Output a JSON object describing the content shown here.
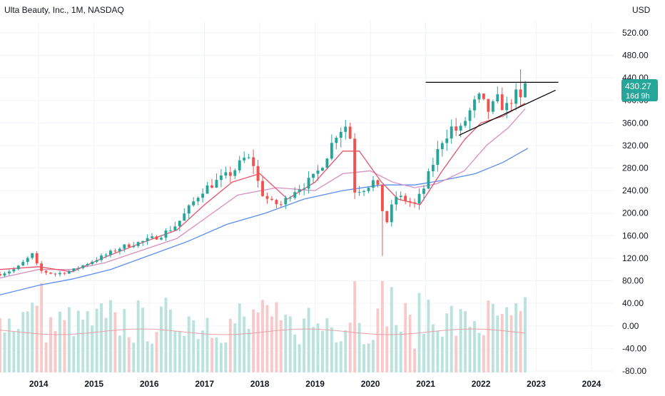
{
  "header": {
    "title": "Ulta Beauty, Inc., 1M, NASDAQ",
    "currency": "USD"
  },
  "price_badge": {
    "price": "430.27",
    "countdown": "16d 9h"
  },
  "colors": {
    "up": "#26a69a",
    "down": "#ef5350",
    "vol_up": "#b9e3dc",
    "vol_down": "#f8c9c8",
    "ma_fast": "#e8536a",
    "ma_mid": "#d88fc0",
    "ma_slow": "#5b8def",
    "grid": "#f0f3fa",
    "trendline": "#000000"
  },
  "chart_data": {
    "type": "candlestick",
    "title": "Ulta Beauty, Inc., 1M, NASDAQ",
    "y_axis": {
      "ticks": [
        "520.00",
        "480.00",
        "440.00",
        "400.00",
        "360.00",
        "320.00",
        "280.00",
        "240.00",
        "200.00",
        "160.00",
        "120.00",
        "80.00",
        "40.00",
        "0.00",
        "-40.00",
        "-80.00"
      ],
      "ylim": [
        -80,
        540
      ]
    },
    "x_axis": {
      "ticks": [
        "2014",
        "2015",
        "2016",
        "2017",
        "2018",
        "2019",
        "2020",
        "2021",
        "2022",
        "2023",
        "2024"
      ],
      "xlim": [
        2013.3,
        2024.4
      ]
    },
    "last_price": 430.27,
    "resistance_level": 432,
    "support_line": {
      "from": [
        "2021-08",
        338
      ],
      "to": [
        "2023-05",
        418
      ]
    },
    "anchors": [
      [
        2013.3,
        92
      ],
      [
        2013.6,
        102
      ],
      [
        2013.9,
        128
      ],
      [
        2014.0,
        98
      ],
      [
        2014.3,
        92
      ],
      [
        2014.6,
        98
      ],
      [
        2014.9,
        112
      ],
      [
        2015.2,
        125
      ],
      [
        2015.5,
        140
      ],
      [
        2015.9,
        150
      ],
      [
        2016.2,
        160
      ],
      [
        2016.5,
        180
      ],
      [
        2016.8,
        220
      ],
      [
        2016.95,
        240
      ],
      [
        2017.2,
        255
      ],
      [
        2017.5,
        272
      ],
      [
        2017.75,
        300
      ],
      [
        2017.9,
        285
      ],
      [
        2018.0,
        240
      ],
      [
        2018.2,
        218
      ],
      [
        2018.4,
        215
      ],
      [
        2018.6,
        240
      ],
      [
        2018.8,
        250
      ],
      [
        2019.0,
        265
      ],
      [
        2019.2,
        300
      ],
      [
        2019.4,
        345
      ],
      [
        2019.55,
        355
      ],
      [
        2019.65,
        330
      ],
      [
        2019.7,
        240
      ],
      [
        2019.9,
        245
      ],
      [
        2020.1,
        260
      ],
      [
        2020.2,
        210
      ],
      [
        2020.3,
        185
      ],
      [
        2020.45,
        230
      ],
      [
        2020.6,
        225
      ],
      [
        2020.8,
        215
      ],
      [
        2020.95,
        240
      ],
      [
        2021.1,
        280
      ],
      [
        2021.3,
        330
      ],
      [
        2021.5,
        355
      ],
      [
        2021.6,
        340
      ],
      [
        2021.75,
        372
      ],
      [
        2021.95,
        405
      ],
      [
        2022.15,
        380
      ],
      [
        2022.3,
        400
      ],
      [
        2022.45,
        385
      ],
      [
        2022.6,
        412
      ],
      [
        2022.75,
        395
      ],
      [
        2022.85,
        430
      ]
    ],
    "ma_fast_pts": [
      [
        2013.3,
        100
      ],
      [
        2014.0,
        105
      ],
      [
        2014.6,
        96
      ],
      [
        2015.2,
        122
      ],
      [
        2015.8,
        145
      ],
      [
        2016.5,
        170
      ],
      [
        2017.0,
        215
      ],
      [
        2017.5,
        255
      ],
      [
        2018.0,
        270
      ],
      [
        2018.5,
        225
      ],
      [
        2019.0,
        255
      ],
      [
        2019.5,
        310
      ],
      [
        2019.8,
        310
      ],
      [
        2020.2,
        255
      ],
      [
        2020.5,
        225
      ],
      [
        2020.9,
        215
      ],
      [
        2021.3,
        275
      ],
      [
        2021.7,
        330
      ],
      [
        2022.0,
        360
      ],
      [
        2022.4,
        372
      ],
      [
        2022.8,
        395
      ]
    ],
    "ma_mid_pts": [
      [
        2013.3,
        85
      ],
      [
        2014.0,
        100
      ],
      [
        2014.6,
        100
      ],
      [
        2015.2,
        112
      ],
      [
        2015.8,
        132
      ],
      [
        2016.5,
        155
      ],
      [
        2017.0,
        190
      ],
      [
        2017.6,
        232
      ],
      [
        2018.3,
        245
      ],
      [
        2019.0,
        240
      ],
      [
        2019.5,
        270
      ],
      [
        2020.0,
        275
      ],
      [
        2020.4,
        255
      ],
      [
        2020.8,
        245
      ],
      [
        2021.2,
        252
      ],
      [
        2021.7,
        275
      ],
      [
        2022.1,
        320
      ],
      [
        2022.5,
        352
      ],
      [
        2022.8,
        385
      ]
    ],
    "ma_slow_pts": [
      [
        2013.3,
        55
      ],
      [
        2014.0,
        72
      ],
      [
        2014.6,
        83
      ],
      [
        2015.3,
        100
      ],
      [
        2016.0,
        125
      ],
      [
        2016.7,
        150
      ],
      [
        2017.4,
        180
      ],
      [
        2018.1,
        200
      ],
      [
        2018.8,
        225
      ],
      [
        2019.5,
        240
      ],
      [
        2020.2,
        250
      ],
      [
        2020.8,
        250
      ],
      [
        2021.3,
        258
      ],
      [
        2021.9,
        270
      ],
      [
        2022.4,
        290
      ],
      [
        2022.85,
        315
      ]
    ]
  }
}
